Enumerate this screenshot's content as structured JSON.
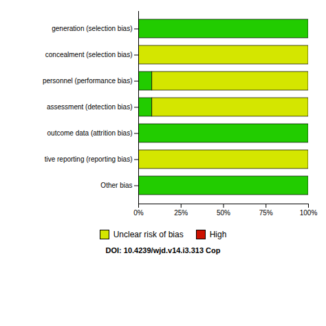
{
  "chart_data": {
    "type": "bar",
    "orientation": "horizontal",
    "stacked": true,
    "categories": [
      "generation (selection bias)",
      "concealment (selection bias)",
      "personnel (performance bias)",
      "assessment (detection bias)",
      "outcome data (attrition bias)",
      "tive reporting (reporting bias)",
      "Other bias"
    ],
    "series": [
      {
        "color": "#22cc00",
        "values": [
          100,
          0,
          8,
          8,
          100,
          0,
          100
        ]
      },
      {
        "name": "Unclear risk of bias",
        "color": "#d4e600",
        "values": [
          0,
          100,
          92,
          92,
          0,
          100,
          0
        ]
      },
      {
        "name": "High",
        "color": "#cc1100",
        "values": [
          0,
          0,
          0,
          0,
          0,
          0,
          0
        ]
      }
    ],
    "xlim": [
      0,
      100
    ],
    "xticks": [
      {
        "value": 0,
        "label": "0%"
      },
      {
        "value": 25,
        "label": "25%"
      },
      {
        "value": 50,
        "label": "50%"
      },
      {
        "value": 75,
        "label": "75%"
      },
      {
        "value": 100,
        "label": "100%"
      }
    ],
    "grid": false,
    "legend": "bottom",
    "annotations": [
      "DOI: 10.4239/wjd.v14.i3.313  Cop"
    ]
  }
}
